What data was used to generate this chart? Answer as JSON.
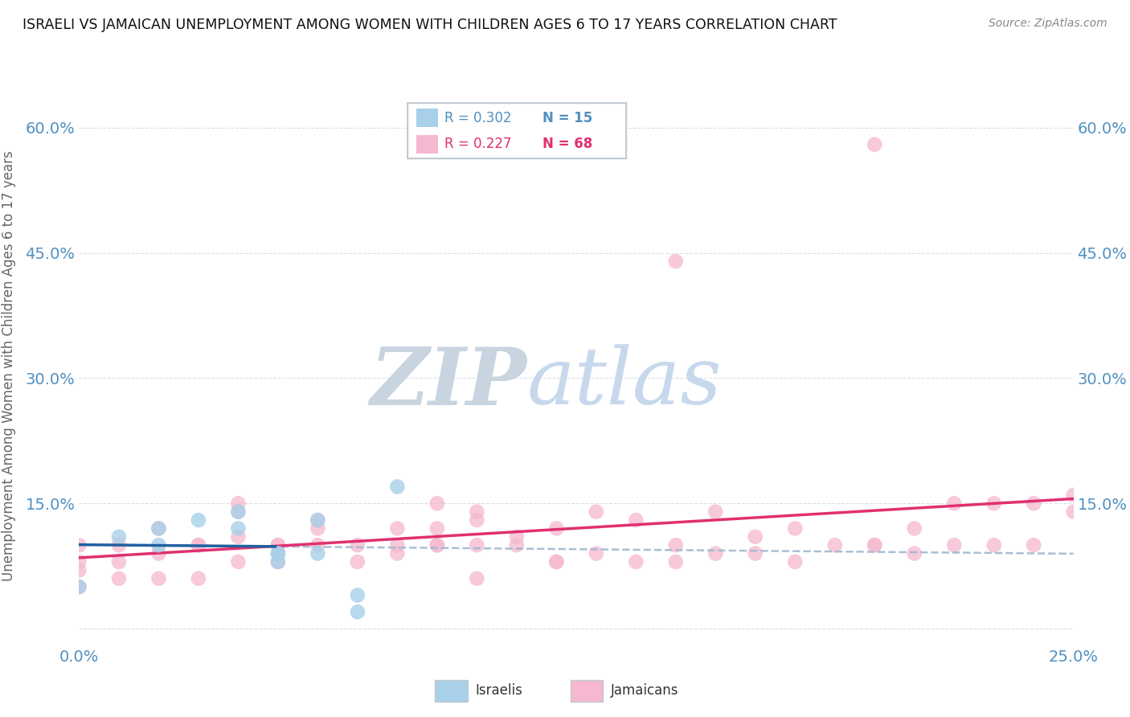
{
  "title": "ISRAELI VS JAMAICAN UNEMPLOYMENT AMONG WOMEN WITH CHILDREN AGES 6 TO 17 YEARS CORRELATION CHART",
  "source": "Source: ZipAtlas.com",
  "ylabel": "Unemployment Among Women with Children Ages 6 to 17 years",
  "xlim": [
    0.0,
    0.25
  ],
  "ylim": [
    -0.02,
    0.65
  ],
  "xticks": [
    0.0,
    0.05,
    0.1,
    0.15,
    0.2,
    0.25
  ],
  "yticks": [
    0.0,
    0.15,
    0.3,
    0.45,
    0.6
  ],
  "ytick_labels_left": [
    "",
    "15.0%",
    "30.0%",
    "45.0%",
    "60.0%"
  ],
  "ytick_labels_right": [
    "",
    "15.0%",
    "30.0%",
    "45.0%",
    "60.0%"
  ],
  "xtick_labels": [
    "0.0%",
    "",
    "",
    "",
    "",
    "25.0%"
  ],
  "israeli_R": 0.302,
  "israeli_N": 15,
  "jamaican_R": 0.227,
  "jamaican_N": 68,
  "israeli_color": "#a8d0e8",
  "jamaican_color": "#f5b8d0",
  "israeli_line_color": "#2060a0",
  "jamaican_line_color": "#e03070",
  "combined_line_color": "#a0b8d0",
  "tick_color": "#5090c0",
  "background_color": "#ffffff",
  "watermark_color": "#d0dce8",
  "israeli_x": [
    0.0,
    0.01,
    0.02,
    0.02,
    0.03,
    0.04,
    0.04,
    0.05,
    0.05,
    0.05,
    0.06,
    0.06,
    0.07,
    0.07,
    0.08
  ],
  "israeli_y": [
    0.05,
    0.11,
    0.1,
    0.12,
    0.13,
    0.12,
    0.14,
    0.08,
    0.09,
    0.09,
    0.09,
    0.13,
    0.02,
    0.04,
    0.17
  ],
  "jamaican_x": [
    0.0,
    0.0,
    0.0,
    0.0,
    0.01,
    0.01,
    0.01,
    0.02,
    0.02,
    0.02,
    0.03,
    0.03,
    0.03,
    0.04,
    0.04,
    0.04,
    0.04,
    0.05,
    0.05,
    0.05,
    0.06,
    0.06,
    0.06,
    0.07,
    0.07,
    0.08,
    0.08,
    0.08,
    0.09,
    0.09,
    0.09,
    0.09,
    0.1,
    0.1,
    0.1,
    0.11,
    0.11,
    0.12,
    0.12,
    0.13,
    0.13,
    0.14,
    0.14,
    0.15,
    0.15,
    0.16,
    0.16,
    0.17,
    0.17,
    0.18,
    0.18,
    0.19,
    0.2,
    0.2,
    0.21,
    0.21,
    0.22,
    0.22,
    0.23,
    0.23,
    0.24,
    0.24,
    0.25,
    0.25,
    0.15,
    0.1,
    0.12,
    0.2
  ],
  "jamaican_y": [
    0.05,
    0.07,
    0.08,
    0.1,
    0.06,
    0.08,
    0.1,
    0.06,
    0.09,
    0.12,
    0.06,
    0.1,
    0.1,
    0.08,
    0.11,
    0.14,
    0.15,
    0.08,
    0.1,
    0.1,
    0.1,
    0.12,
    0.13,
    0.08,
    0.1,
    0.09,
    0.1,
    0.12,
    0.1,
    0.12,
    0.15,
    0.1,
    0.1,
    0.13,
    0.14,
    0.11,
    0.1,
    0.08,
    0.12,
    0.09,
    0.14,
    0.08,
    0.13,
    0.08,
    0.1,
    0.09,
    0.14,
    0.09,
    0.11,
    0.08,
    0.12,
    0.1,
    0.1,
    0.1,
    0.09,
    0.12,
    0.1,
    0.15,
    0.1,
    0.15,
    0.15,
    0.1,
    0.14,
    0.16,
    0.44,
    0.06,
    0.08,
    0.58
  ]
}
